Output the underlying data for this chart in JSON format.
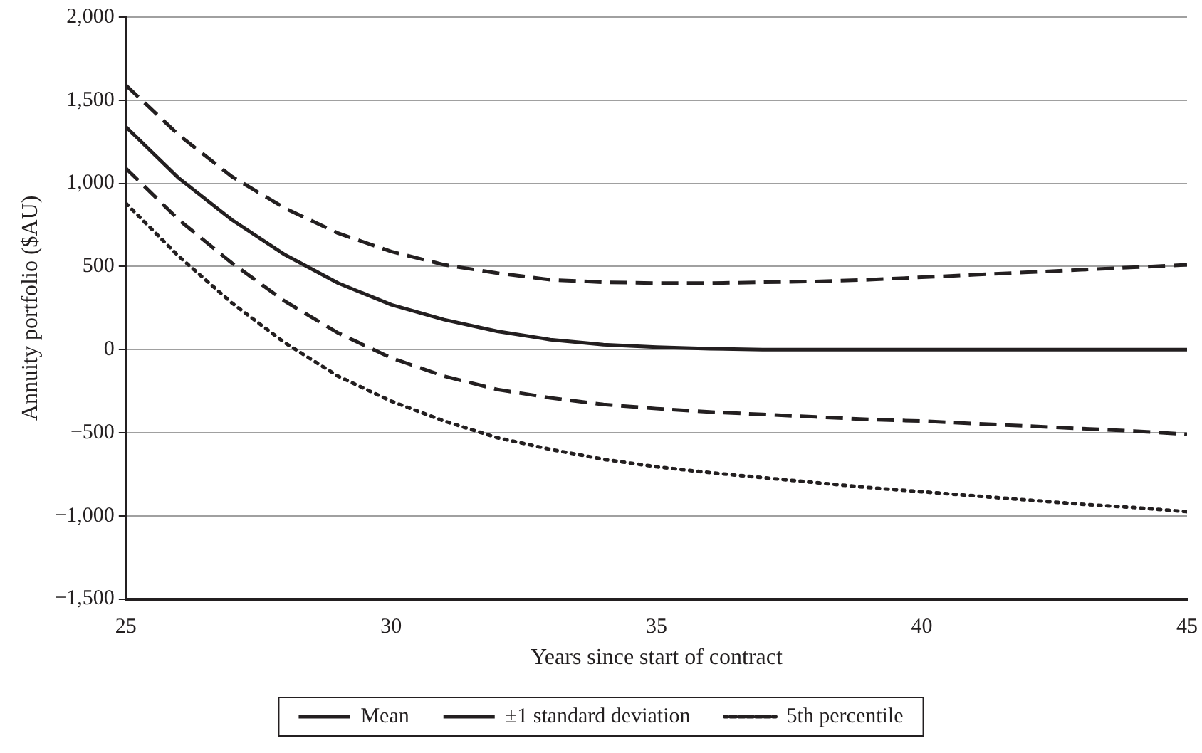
{
  "chart_data": {
    "type": "line",
    "xlabel": "Years since start of contract",
    "ylabel": "Annuity portfolio ($AU)",
    "x": [
      25,
      26,
      27,
      28,
      29,
      30,
      31,
      32,
      33,
      34,
      35,
      36,
      37,
      38,
      39,
      40,
      41,
      42,
      43,
      44,
      45
    ],
    "series": [
      {
        "name": "Mean",
        "color": "#231f20",
        "line_style": "solid",
        "values": [
          1340,
          1030,
          780,
          570,
          400,
          270,
          180,
          110,
          60,
          30,
          15,
          5,
          0,
          0,
          0,
          0,
          0,
          0,
          0,
          0,
          0
        ]
      },
      {
        "name": "±1 standard deviation",
        "color": "#231f20",
        "line_style": "dashed",
        "values": [
          1590,
          1290,
          1040,
          850,
          700,
          590,
          510,
          460,
          420,
          405,
          400,
          400,
          405,
          410,
          420,
          435,
          450,
          465,
          480,
          495,
          510
        ]
      },
      {
        "color": "#231f20",
        "line_style": "dashed",
        "values": [
          1090,
          780,
          520,
          290,
          100,
          -50,
          -160,
          -240,
          -290,
          -330,
          -355,
          -375,
          -390,
          -405,
          -420,
          -430,
          -445,
          -460,
          -475,
          -490,
          -510
        ]
      },
      {
        "name": "5th percentile",
        "color": "#231f20",
        "line_style": "dotted",
        "values": [
          880,
          560,
          280,
          40,
          -160,
          -310,
          -430,
          -530,
          -600,
          -660,
          -705,
          -740,
          -770,
          -800,
          -830,
          -855,
          -880,
          -905,
          -930,
          -950,
          -975
        ]
      }
    ],
    "xlim": [
      25,
      45
    ],
    "xticks": [
      25,
      30,
      35,
      40,
      45
    ],
    "ylim": [
      -1500,
      2000
    ],
    "yticks": [
      {
        "value": -1500,
        "label": "−1,500"
      },
      {
        "value": -1000,
        "label": "−1,000"
      },
      {
        "value": -500,
        "label": "−500"
      },
      0,
      {
        "value": 500,
        "label": "500"
      },
      {
        "value": 1000,
        "label": "1,000"
      },
      {
        "value": 1500,
        "label": "1,500"
      },
      {
        "value": 2000,
        "label": "2,000"
      }
    ],
    "grid": "y",
    "legend": "bottom",
    "marker": "none"
  }
}
